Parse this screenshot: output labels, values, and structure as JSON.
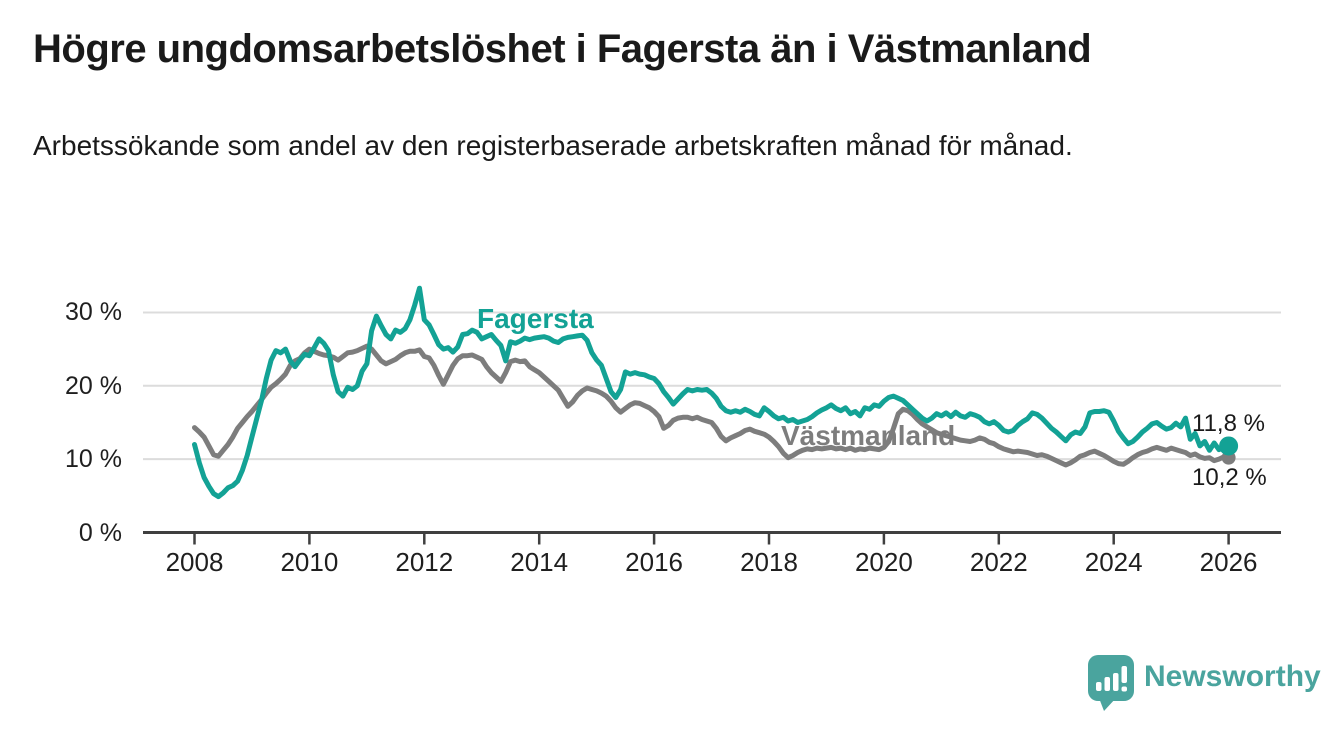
{
  "header": {
    "title": "Högre ungdomsarbetslöshet i Fagersta än i Västmanland",
    "subtitle": "Arbetssökande som andel av den registerbaserade arbetskraften månad för månad."
  },
  "chart_data": {
    "type": "line",
    "title": "Högre ungdomsarbetslöshet i Fagersta än i Västmanland",
    "subtitle": "Arbetssökande som andel av den registerbaserade arbetskraften månad för månad.",
    "grid": true,
    "legend_position": "inline-labels-on-lines",
    "x_start_year": 2008,
    "points_per_year": 12,
    "x_axis": {
      "ticks": [
        2008,
        2010,
        2012,
        2014,
        2016,
        2018,
        2020,
        2022,
        2024,
        2026
      ],
      "tick_labels": [
        "2008",
        "2010",
        "2012",
        "2014",
        "2016",
        "2018",
        "2020",
        "2022",
        "2024",
        "2026"
      ]
    },
    "y_axis": {
      "unit": "%",
      "ticks": [
        0,
        10,
        20,
        30
      ],
      "tick_labels": [
        "0 %",
        "10 %",
        "20 %",
        "30 %"
      ],
      "range": [
        0,
        35
      ]
    },
    "series": [
      {
        "name": "Västmanland",
        "color": "#7d7d7d",
        "end_label": "10,2 %",
        "end_value": 10.2,
        "values": [
          14.3,
          13.7,
          13.0,
          11.8,
          10.6,
          10.4,
          11.2,
          12.0,
          13.0,
          14.2,
          15.0,
          15.8,
          16.5,
          17.3,
          18.1,
          19.0,
          19.8,
          20.3,
          20.9,
          21.6,
          22.8,
          23.4,
          23.7,
          24.5,
          25.0,
          24.7,
          24.4,
          24.2,
          24.1,
          23.9,
          23.5,
          24.0,
          24.5,
          24.6,
          24.8,
          25.1,
          25.4,
          25.0,
          24.2,
          23.4,
          23.0,
          23.3,
          23.6,
          24.1,
          24.5,
          24.7,
          24.7,
          24.9,
          24.0,
          23.8,
          22.8,
          21.4,
          20.2,
          21.5,
          22.8,
          23.7,
          24.1,
          24.1,
          24.2,
          23.9,
          23.6,
          22.6,
          21.8,
          21.2,
          20.6,
          21.8,
          23.3,
          23.5,
          23.3,
          23.4,
          22.6,
          22.2,
          21.8,
          21.2,
          20.6,
          20.0,
          19.4,
          18.3,
          17.2,
          17.8,
          18.7,
          19.3,
          19.7,
          19.5,
          19.3,
          19.0,
          18.6,
          17.9,
          17.0,
          16.4,
          16.9,
          17.4,
          17.7,
          17.6,
          17.3,
          17.0,
          16.5,
          15.8,
          14.2,
          14.6,
          15.3,
          15.6,
          15.7,
          15.7,
          15.5,
          15.7,
          15.4,
          15.2,
          15.0,
          14.2,
          13.1,
          12.5,
          12.9,
          13.2,
          13.5,
          13.9,
          14.1,
          13.8,
          13.6,
          13.4,
          13.0,
          12.4,
          11.7,
          10.8,
          10.2,
          10.5,
          10.9,
          11.2,
          11.4,
          11.3,
          11.5,
          11.4,
          11.5,
          11.6,
          11.4,
          11.5,
          11.3,
          11.5,
          11.2,
          11.4,
          11.3,
          11.5,
          11.4,
          11.3,
          11.6,
          12.4,
          14.2,
          16.2,
          16.8,
          16.6,
          16.1,
          15.4,
          14.8,
          14.4,
          14.0,
          13.6,
          13.4,
          13.2,
          13.0,
          12.8,
          12.6,
          12.5,
          12.4,
          12.6,
          12.9,
          12.7,
          12.3,
          12.1,
          11.7,
          11.4,
          11.2,
          11.0,
          11.1,
          11.0,
          10.9,
          10.7,
          10.5,
          10.6,
          10.4,
          10.1,
          9.8,
          9.5,
          9.2,
          9.5,
          9.9,
          10.4,
          10.6,
          10.9,
          11.1,
          10.8,
          10.5,
          10.1,
          9.7,
          9.4,
          9.3,
          9.7,
          10.2,
          10.6,
          10.9,
          11.1,
          11.4,
          11.6,
          11.4,
          11.2,
          11.5,
          11.3,
          11.1,
          10.9,
          10.5,
          10.7,
          10.3,
          10.1,
          10.2,
          9.8,
          10.0,
          10.3,
          10.2
        ]
      },
      {
        "name": "Fagersta",
        "color": "#13a295",
        "end_label": "11,8 %",
        "end_value": 11.8,
        "values": [
          12.0,
          9.5,
          7.5,
          6.3,
          5.3,
          4.9,
          5.4,
          6.1,
          6.4,
          7.0,
          8.5,
          10.5,
          13.0,
          15.5,
          18.0,
          21.0,
          23.5,
          24.8,
          24.5,
          25.0,
          23.4,
          22.6,
          23.5,
          24.3,
          24.1,
          25.2,
          26.4,
          25.8,
          24.8,
          21.5,
          19.2,
          18.6,
          19.8,
          19.5,
          20.0,
          22.0,
          23.0,
          27.5,
          29.5,
          28.2,
          27.0,
          26.4,
          27.6,
          27.3,
          27.8,
          29.0,
          31.0,
          33.3,
          29.0,
          28.3,
          27.0,
          25.6,
          25.0,
          25.2,
          24.6,
          25.3,
          27.0,
          27.1,
          27.6,
          27.3,
          26.4,
          26.7,
          27.0,
          26.2,
          25.5,
          23.4,
          26.0,
          25.8,
          26.1,
          26.5,
          26.3,
          26.5,
          26.6,
          26.7,
          26.5,
          26.1,
          25.9,
          26.4,
          26.6,
          26.7,
          26.8,
          26.9,
          26.2,
          24.5,
          23.5,
          22.8,
          21.0,
          19.2,
          18.4,
          19.5,
          21.9,
          21.6,
          21.8,
          21.6,
          21.5,
          21.2,
          21.0,
          20.3,
          19.2,
          18.4,
          17.5,
          18.2,
          18.9,
          19.5,
          19.3,
          19.5,
          19.4,
          19.5,
          19.0,
          18.3,
          17.2,
          16.6,
          16.4,
          16.6,
          16.4,
          16.8,
          16.5,
          16.1,
          15.9,
          17.0,
          16.5,
          15.9,
          15.5,
          15.7,
          15.2,
          15.4,
          15.0,
          15.2,
          15.4,
          15.8,
          16.3,
          16.7,
          17.0,
          17.4,
          16.9,
          16.6,
          17.0,
          16.2,
          16.5,
          15.9,
          17.0,
          16.8,
          17.4,
          17.2,
          17.9,
          18.4,
          18.6,
          18.3,
          18.0,
          17.4,
          16.8,
          16.2,
          15.6,
          15.2,
          15.6,
          16.2,
          15.9,
          16.3,
          15.8,
          16.4,
          15.9,
          15.7,
          16.2,
          16.0,
          15.7,
          15.1,
          14.8,
          15.1,
          14.6,
          13.9,
          13.7,
          13.9,
          14.6,
          15.1,
          15.5,
          16.3,
          16.1,
          15.6,
          14.9,
          14.2,
          13.7,
          13.1,
          12.5,
          13.3,
          13.7,
          13.5,
          14.4,
          16.3,
          16.5,
          16.5,
          16.6,
          16.4,
          15.2,
          13.8,
          12.9,
          12.1,
          12.4,
          13.0,
          13.7,
          14.2,
          14.8,
          15.0,
          14.5,
          14.1,
          14.3,
          14.9,
          14.4,
          15.6,
          12.7,
          13.5,
          11.8,
          12.4,
          11.2,
          12.2,
          11.3,
          11.6,
          11.8
        ]
      }
    ]
  },
  "annotations": {
    "fagersta_label": "Fagersta",
    "vastmanland_label": "Västmanland",
    "fagersta_end_value": "11,8 %",
    "vastmanland_end_value": "10,2 %"
  },
  "colors": {
    "fagersta_line": "#13a295",
    "vastmanland_line": "#7d7d7d",
    "gridline": "#dcdcdc",
    "axis": "#3f3f3f",
    "text": "#1a1a1a",
    "logo": "#4aa49e"
  },
  "footer": {
    "brand": "Newsworthy"
  }
}
